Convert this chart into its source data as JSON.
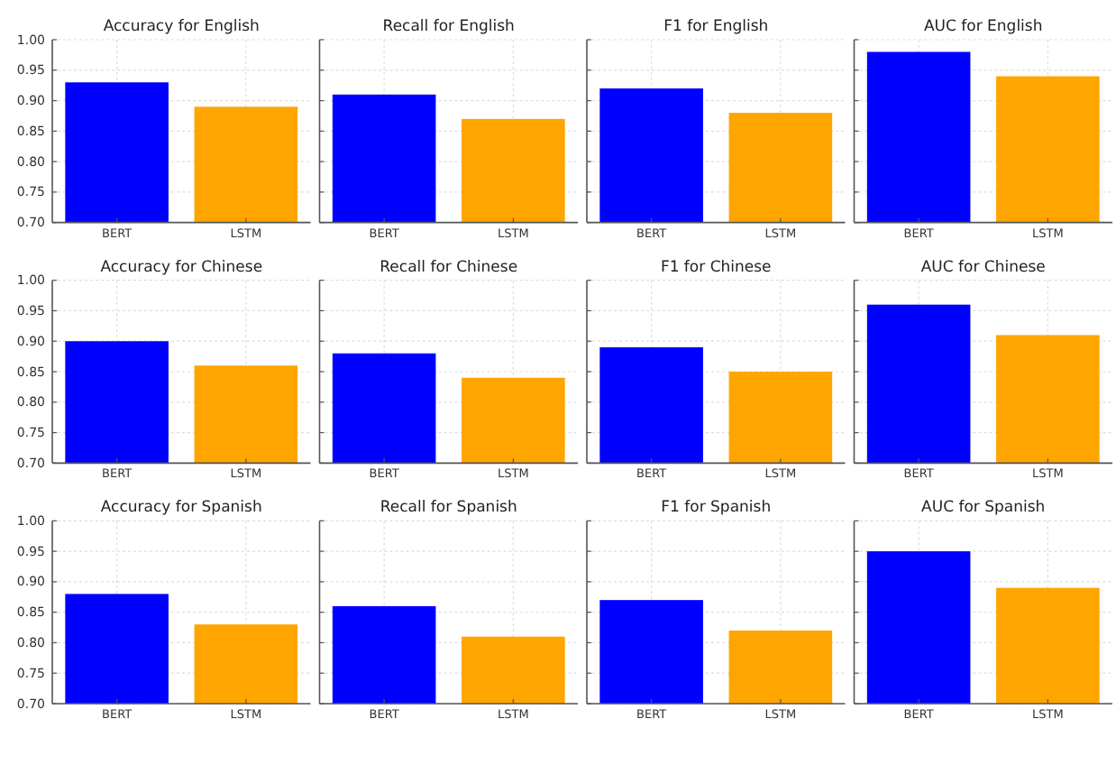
{
  "chart_data": [
    {
      "type": "bar",
      "title": "Accuracy for English",
      "categories": [
        "BERT",
        "LSTM"
      ],
      "values": [
        0.93,
        0.89
      ],
      "colors": [
        "#0000ff",
        "#ffa500"
      ],
      "ylim": [
        0.7,
        1.0
      ],
      "yticks": [
        {
          "value": 0.7,
          "label": "0.70"
        },
        {
          "value": 0.75,
          "label": "0.75"
        },
        {
          "value": 0.8,
          "label": "0.80"
        },
        {
          "value": 0.85,
          "label": "0.85"
        },
        {
          "value": 0.9,
          "label": "0.90"
        },
        {
          "value": 0.95,
          "label": "0.95"
        },
        {
          "value": 1.0,
          "label": "1.00"
        }
      ],
      "grid": true
    },
    {
      "type": "bar",
      "title": "Recall for English",
      "categories": [
        "BERT",
        "LSTM"
      ],
      "values": [
        0.91,
        0.87
      ],
      "colors": [
        "#0000ff",
        "#ffa500"
      ],
      "ylim": [
        0.7,
        1.0
      ],
      "yticks": [
        {
          "value": 0.7,
          "label": null
        },
        {
          "value": 0.75,
          "label": null
        },
        {
          "value": 0.8,
          "label": null
        },
        {
          "value": 0.85,
          "label": null
        },
        {
          "value": 0.9,
          "label": null
        },
        {
          "value": 0.95,
          "label": null
        },
        {
          "value": 1.0,
          "label": null
        }
      ],
      "grid": true,
      "tick_labels": "x"
    },
    {
      "type": "bar",
      "title": "F1 for English",
      "categories": [
        "BERT",
        "LSTM"
      ],
      "values": [
        0.92,
        0.88
      ],
      "colors": [
        "#0000ff",
        "#ffa500"
      ],
      "ylim": [
        0.7,
        1.0
      ],
      "yticks": [
        {
          "value": 0.7,
          "label": null
        },
        {
          "value": 0.75,
          "label": null
        },
        {
          "value": 0.8,
          "label": null
        },
        {
          "value": 0.85,
          "label": null
        },
        {
          "value": 0.9,
          "label": null
        },
        {
          "value": 0.95,
          "label": null
        },
        {
          "value": 1.0,
          "label": null
        }
      ],
      "grid": true,
      "tick_labels": "x"
    },
    {
      "type": "bar",
      "title": "AUC for English",
      "categories": [
        "BERT",
        "LSTM"
      ],
      "values": [
        0.98,
        0.94
      ],
      "colors": [
        "#0000ff",
        "#ffa500"
      ],
      "ylim": [
        0.7,
        1.0
      ],
      "yticks": [
        {
          "value": 0.7,
          "label": null
        },
        {
          "value": 0.75,
          "label": null
        },
        {
          "value": 0.8,
          "label": null
        },
        {
          "value": 0.85,
          "label": null
        },
        {
          "value": 0.9,
          "label": null
        },
        {
          "value": 0.95,
          "label": null
        },
        {
          "value": 1.0,
          "label": null
        }
      ],
      "grid": true,
      "tick_labels": "x"
    },
    {
      "type": "bar",
      "title": "Accuracy for Chinese",
      "categories": [
        "BERT",
        "LSTM"
      ],
      "values": [
        0.9,
        0.86
      ],
      "colors": [
        "#0000ff",
        "#ffa500"
      ],
      "ylim": [
        0.7,
        1.0
      ],
      "yticks": [
        {
          "value": 0.7,
          "label": "0.70"
        },
        {
          "value": 0.75,
          "label": "0.75"
        },
        {
          "value": 0.8,
          "label": "0.80"
        },
        {
          "value": 0.85,
          "label": "0.85"
        },
        {
          "value": 0.9,
          "label": "0.90"
        },
        {
          "value": 0.95,
          "label": "0.95"
        },
        {
          "value": 1.0,
          "label": "1.00"
        }
      ],
      "grid": true
    },
    {
      "type": "bar",
      "title": "Recall for Chinese",
      "categories": [
        "BERT",
        "LSTM"
      ],
      "values": [
        0.88,
        0.84
      ],
      "colors": [
        "#0000ff",
        "#ffa500"
      ],
      "ylim": [
        0.7,
        1.0
      ],
      "yticks": [
        {
          "value": 0.7,
          "label": null
        },
        {
          "value": 0.75,
          "label": null
        },
        {
          "value": 0.8,
          "label": null
        },
        {
          "value": 0.85,
          "label": null
        },
        {
          "value": 0.9,
          "label": null
        },
        {
          "value": 0.95,
          "label": null
        },
        {
          "value": 1.0,
          "label": null
        }
      ],
      "grid": true,
      "tick_labels": "x"
    },
    {
      "type": "bar",
      "title": "F1 for Chinese",
      "categories": [
        "BERT",
        "LSTM"
      ],
      "values": [
        0.89,
        0.85
      ],
      "colors": [
        "#0000ff",
        "#ffa500"
      ],
      "ylim": [
        0.7,
        1.0
      ],
      "yticks": [
        {
          "value": 0.7,
          "label": null
        },
        {
          "value": 0.75,
          "label": null
        },
        {
          "value": 0.8,
          "label": null
        },
        {
          "value": 0.85,
          "label": null
        },
        {
          "value": 0.9,
          "label": null
        },
        {
          "value": 0.95,
          "label": null
        },
        {
          "value": 1.0,
          "label": null
        }
      ],
      "grid": true,
      "tick_labels": "x"
    },
    {
      "type": "bar",
      "title": "AUC for Chinese",
      "categories": [
        "BERT",
        "LSTM"
      ],
      "values": [
        0.96,
        0.91
      ],
      "colors": [
        "#0000ff",
        "#ffa500"
      ],
      "ylim": [
        0.7,
        1.0
      ],
      "yticks": [
        {
          "value": 0.7,
          "label": null
        },
        {
          "value": 0.75,
          "label": null
        },
        {
          "value": 0.8,
          "label": null
        },
        {
          "value": 0.85,
          "label": null
        },
        {
          "value": 0.9,
          "label": null
        },
        {
          "value": 0.95,
          "label": null
        },
        {
          "value": 1.0,
          "label": null
        }
      ],
      "grid": true,
      "tick_labels": "x"
    },
    {
      "type": "bar",
      "title": "Accuracy for Spanish",
      "categories": [
        "BERT",
        "LSTM"
      ],
      "values": [
        0.88,
        0.83
      ],
      "colors": [
        "#0000ff",
        "#ffa500"
      ],
      "ylim": [
        0.7,
        1.0
      ],
      "yticks": [
        {
          "value": 0.7,
          "label": "0.70"
        },
        {
          "value": 0.75,
          "label": "0.75"
        },
        {
          "value": 0.8,
          "label": "0.80"
        },
        {
          "value": 0.85,
          "label": "0.85"
        },
        {
          "value": 0.9,
          "label": "0.90"
        },
        {
          "value": 0.95,
          "label": "0.95"
        },
        {
          "value": 1.0,
          "label": "1.00"
        }
      ],
      "grid": true
    },
    {
      "type": "bar",
      "title": "Recall for Spanish",
      "categories": [
        "BERT",
        "LSTM"
      ],
      "values": [
        0.86,
        0.81
      ],
      "colors": [
        "#0000ff",
        "#ffa500"
      ],
      "ylim": [
        0.7,
        1.0
      ],
      "yticks": [
        {
          "value": 0.7,
          "label": null
        },
        {
          "value": 0.75,
          "label": null
        },
        {
          "value": 0.8,
          "label": null
        },
        {
          "value": 0.85,
          "label": null
        },
        {
          "value": 0.9,
          "label": null
        },
        {
          "value": 0.95,
          "label": null
        },
        {
          "value": 1.0,
          "label": null
        }
      ],
      "grid": true,
      "tick_labels": "x"
    },
    {
      "type": "bar",
      "title": "F1 for Spanish",
      "categories": [
        "BERT",
        "LSTM"
      ],
      "values": [
        0.87,
        0.82
      ],
      "colors": [
        "#0000ff",
        "#ffa500"
      ],
      "ylim": [
        0.7,
        1.0
      ],
      "yticks": [
        {
          "value": 0.7,
          "label": null
        },
        {
          "value": 0.75,
          "label": null
        },
        {
          "value": 0.8,
          "label": null
        },
        {
          "value": 0.85,
          "label": null
        },
        {
          "value": 0.9,
          "label": null
        },
        {
          "value": 0.95,
          "label": null
        },
        {
          "value": 1.0,
          "label": null
        }
      ],
      "grid": true,
      "tick_labels": "x"
    },
    {
      "type": "bar",
      "title": "AUC for Spanish",
      "categories": [
        "BERT",
        "LSTM"
      ],
      "values": [
        0.95,
        0.89
      ],
      "colors": [
        "#0000ff",
        "#ffa500"
      ],
      "ylim": [
        0.7,
        1.0
      ],
      "yticks": [
        {
          "value": 0.7,
          "label": null
        },
        {
          "value": 0.75,
          "label": null
        },
        {
          "value": 0.8,
          "label": null
        },
        {
          "value": 0.85,
          "label": null
        },
        {
          "value": 0.9,
          "label": null
        },
        {
          "value": 0.95,
          "label": null
        },
        {
          "value": 1.0,
          "label": null
        }
      ],
      "grid": true,
      "tick_labels": "x"
    }
  ]
}
